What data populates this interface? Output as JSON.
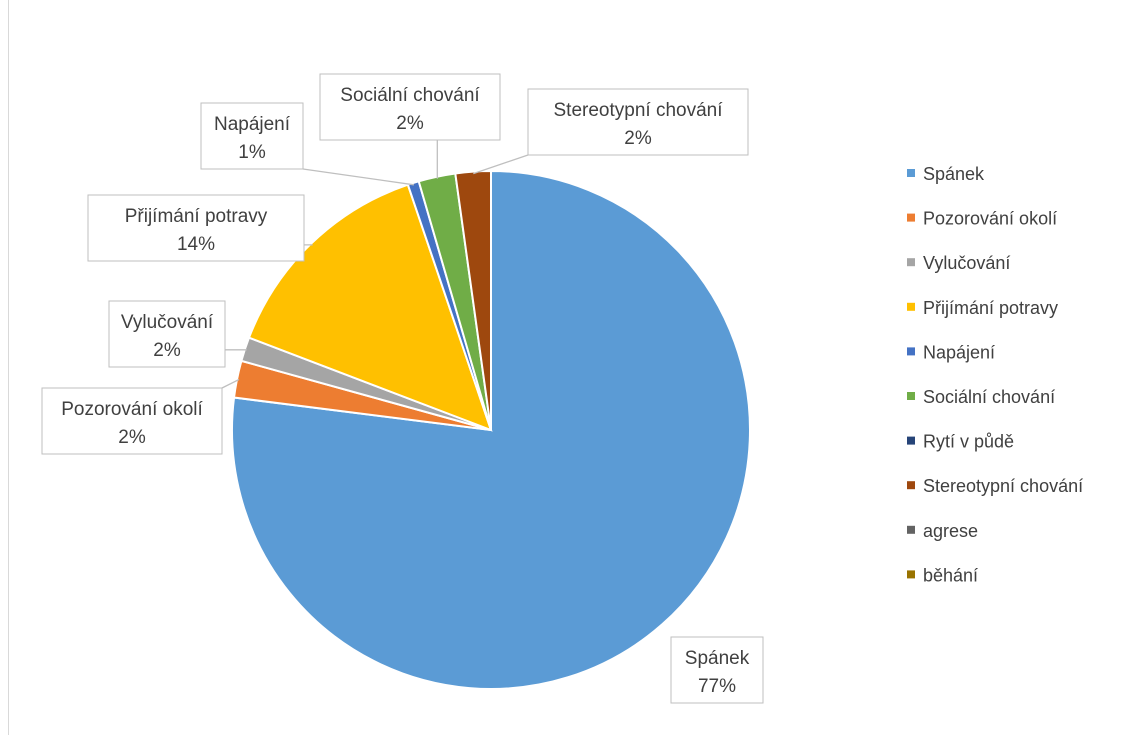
{
  "chart_data": {
    "type": "pie",
    "title": "",
    "categories": [
      "Spánek",
      "Pozorování okolí",
      "Vylučování",
      "Přijímání potravy",
      "Napájení",
      "Sociální chování",
      "Rytí v půdě",
      "Stereotypní chování",
      "agrese",
      "běhání"
    ],
    "values": [
      77.0,
      2.3,
      1.5,
      14.0,
      0.7,
      2.3,
      0.0,
      2.2,
      0.0,
      0.0
    ],
    "labels_shown": [
      "77%",
      "2%",
      "2%",
      "14%",
      "1%",
      "2%",
      "",
      "2%",
      "",
      ""
    ],
    "colors": [
      "#5b9bd5",
      "#ed7d31",
      "#a5a5a5",
      "#ffc000",
      "#4472c4",
      "#70ad47",
      "#264478",
      "#9e480e",
      "#636363",
      "#997300"
    ],
    "legend_position": "right",
    "start": "top, clockwise"
  }
}
